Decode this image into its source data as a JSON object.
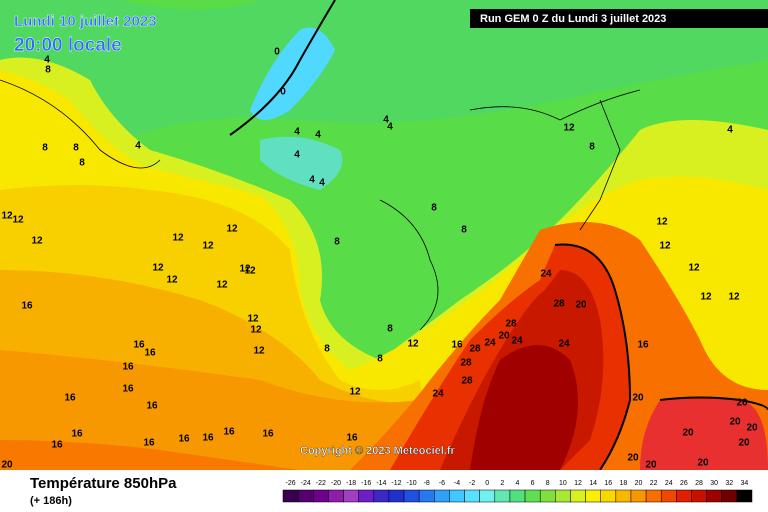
{
  "header": {
    "date": "Lundi 10 juillet 2023",
    "time": "20:00 locale",
    "run": "Run GEM 0 Z du Lundi 3 juillet 2023"
  },
  "copyright": "Copyright © 2023 Meteociel.fr",
  "footer": {
    "title": "Température 850hPa",
    "lead": "(+ 186h)"
  },
  "legend": {
    "labels": [
      -26,
      -24,
      -22,
      -20,
      -18,
      -16,
      -14,
      -12,
      -10,
      -8,
      -6,
      -4,
      -2,
      0,
      2,
      4,
      6,
      8,
      10,
      12,
      14,
      16,
      18,
      20,
      22,
      24,
      26,
      28,
      30,
      32,
      34
    ],
    "colors": [
      "#3a0050",
      "#55006e",
      "#6e008c",
      "#8c1ea8",
      "#a040c0",
      "#6e1ec8",
      "#3c28c8",
      "#2030d0",
      "#2050e0",
      "#2878f0",
      "#30a0f8",
      "#40c8ff",
      "#58e0ff",
      "#70f0f0",
      "#60e8b0",
      "#50e080",
      "#60e050",
      "#80e040",
      "#a8e830",
      "#d8f020",
      "#f8f000",
      "#f8d800",
      "#f8b800",
      "#f89800",
      "#f87000",
      "#f04800",
      "#e02000",
      "#c81000",
      "#a00000",
      "#700000",
      "#000000"
    ]
  },
  "map": {
    "contour_labels": [
      0,
      0,
      4,
      4,
      4,
      4,
      4,
      4,
      4,
      4,
      4,
      8,
      8,
      8,
      8,
      8,
      8,
      8,
      12,
      8,
      4,
      12,
      12,
      12,
      12,
      12,
      12,
      12,
      12,
      12,
      12,
      12,
      12,
      12,
      12,
      16,
      16,
      16,
      16,
      16,
      16,
      16,
      16,
      16,
      16,
      16,
      16,
      16,
      16,
      16,
      20,
      12,
      8,
      8,
      8,
      12,
      16,
      28,
      24,
      28,
      20,
      24,
      24,
      28,
      20,
      24,
      28,
      28,
      24,
      16,
      20,
      12,
      12,
      12,
      12,
      12,
      20,
      20,
      20,
      20,
      20,
      20,
      20,
      20
    ]
  }
}
